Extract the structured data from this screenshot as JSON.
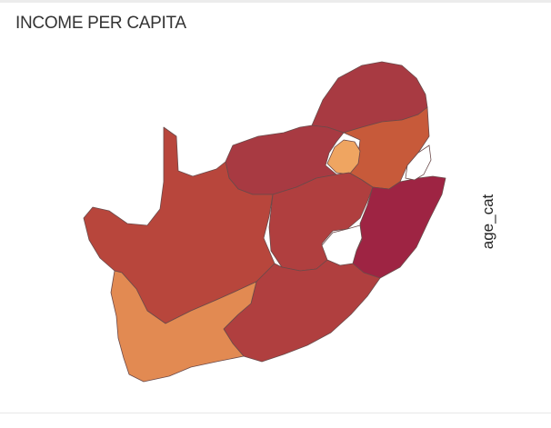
{
  "title": "INCOME PER CAPITA",
  "legend": {
    "title": "age_cat"
  },
  "colors": {
    "dark_crimson": "#9e2443",
    "deep_red": "#a83a42",
    "brick_red": "#b03f3f",
    "red_orange": "#b8463c",
    "burnt_orange": "#c75a3a",
    "light_orange": "#e28a52",
    "pale_orange": "#efa561"
  },
  "regions": [
    {
      "id": "northern-province",
      "color": "deep_red"
    },
    {
      "id": "north-west",
      "color": "deep_red"
    },
    {
      "id": "northern-cape",
      "color": "red_orange"
    },
    {
      "id": "free-state",
      "color": "brick_red"
    },
    {
      "id": "mpumalanga",
      "color": "burnt_orange"
    },
    {
      "id": "gauteng",
      "color": "pale_orange"
    },
    {
      "id": "kwazulu-natal",
      "color": "dark_crimson"
    },
    {
      "id": "eastern-cape",
      "color": "brick_red"
    },
    {
      "id": "western-cape",
      "color": "light_orange"
    }
  ]
}
